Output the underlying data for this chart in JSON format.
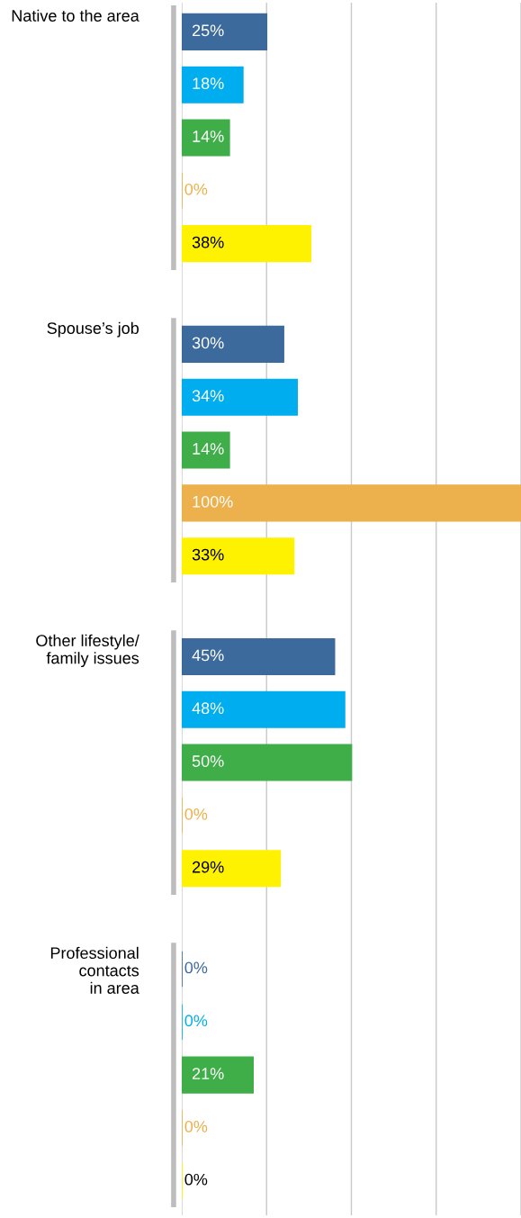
{
  "chart_data": {
    "type": "bar",
    "orientation": "horizontal",
    "categories": [
      "Native to the area",
      "Spouse’s job",
      "Other lifestyle/\nfamily issues",
      "Professional\ncontacts\nin area"
    ],
    "series": [
      {
        "color": "#3d6a9c",
        "values": [
          25,
          30,
          45,
          0
        ],
        "value_labels": [
          "25%",
          "30%",
          "45%",
          "0%"
        ]
      },
      {
        "color": "#00aeef",
        "values": [
          18,
          34,
          48,
          0
        ],
        "value_labels": [
          "18%",
          "34%",
          "48%",
          "0%"
        ]
      },
      {
        "color": "#3fae49",
        "values": [
          14,
          14,
          50,
          21
        ],
        "value_labels": [
          "14%",
          "14%",
          "50%",
          "21%"
        ]
      },
      {
        "color": "#ecb04c",
        "values": [
          0,
          100,
          0,
          0
        ],
        "value_labels": [
          "0%",
          "100%",
          "0%",
          "0%"
        ]
      },
      {
        "color": "#fff200",
        "values": [
          38,
          33,
          29,
          0
        ],
        "value_labels": [
          "38%",
          "33%",
          "29%",
          "0%"
        ]
      }
    ],
    "xlim": [
      0,
      100
    ],
    "xticks": [
      0,
      25,
      50,
      75,
      100
    ],
    "grid": "x",
    "tick_labels": "y"
  }
}
